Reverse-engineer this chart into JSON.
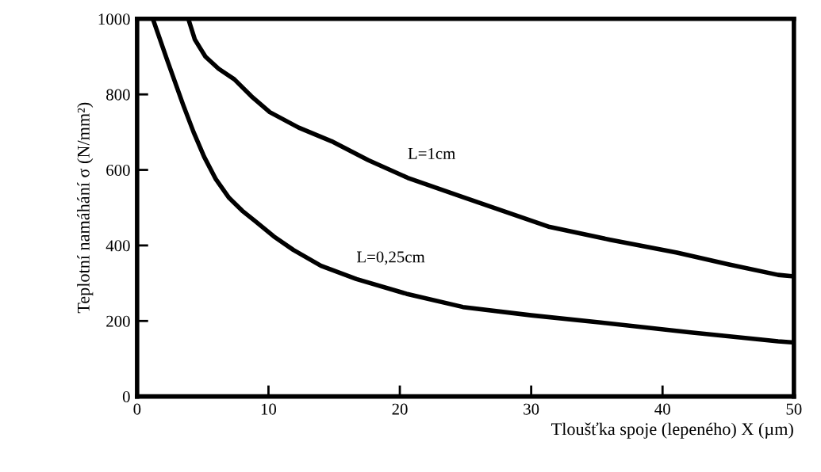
{
  "chart_data": {
    "type": "line",
    "xlabel": "Tloušťka spoje (lepeného) X (µm)",
    "ylabel": "Teplotní namáhání σ (N/mm²)",
    "xlim": [
      0,
      50
    ],
    "ylim": [
      0,
      1000
    ],
    "xticks": [
      0,
      10,
      20,
      30,
      40,
      50
    ],
    "yticks": [
      0,
      200,
      400,
      600,
      800,
      1000
    ],
    "grid": false,
    "legend": false,
    "marker": "none",
    "line_style": "solid",
    "series": [
      {
        "name": "L=1cm",
        "color": "#000000",
        "x": [
          3.9,
          4.4,
          5.2,
          6.2,
          7.4,
          8.7,
          10.1,
          12.3,
          14.8,
          17.6,
          20.6,
          24.8,
          31.4,
          36,
          41.1,
          45,
          48.8,
          50
        ],
        "values": [
          1000,
          945,
          900,
          868,
          840,
          795,
          753,
          712,
          676,
          626,
          579,
          528,
          449,
          415,
          381,
          350,
          322,
          318
        ]
      },
      {
        "name": "L=0,25cm",
        "color": "#000000",
        "x": [
          1.2,
          2.3,
          3.5,
          4.3,
          5.1,
          6.0,
          7.0,
          8.0,
          9.0,
          10.4,
          11.9,
          14.0,
          16.7,
          20.5,
          24.8,
          30,
          35.3,
          42,
          48.8,
          50
        ],
        "values": [
          1000,
          890,
          773,
          700,
          635,
          575,
          526,
          492,
          464,
          424,
          388,
          346,
          311,
          272,
          237,
          215,
          196,
          170,
          146,
          143
        ]
      }
    ]
  }
}
